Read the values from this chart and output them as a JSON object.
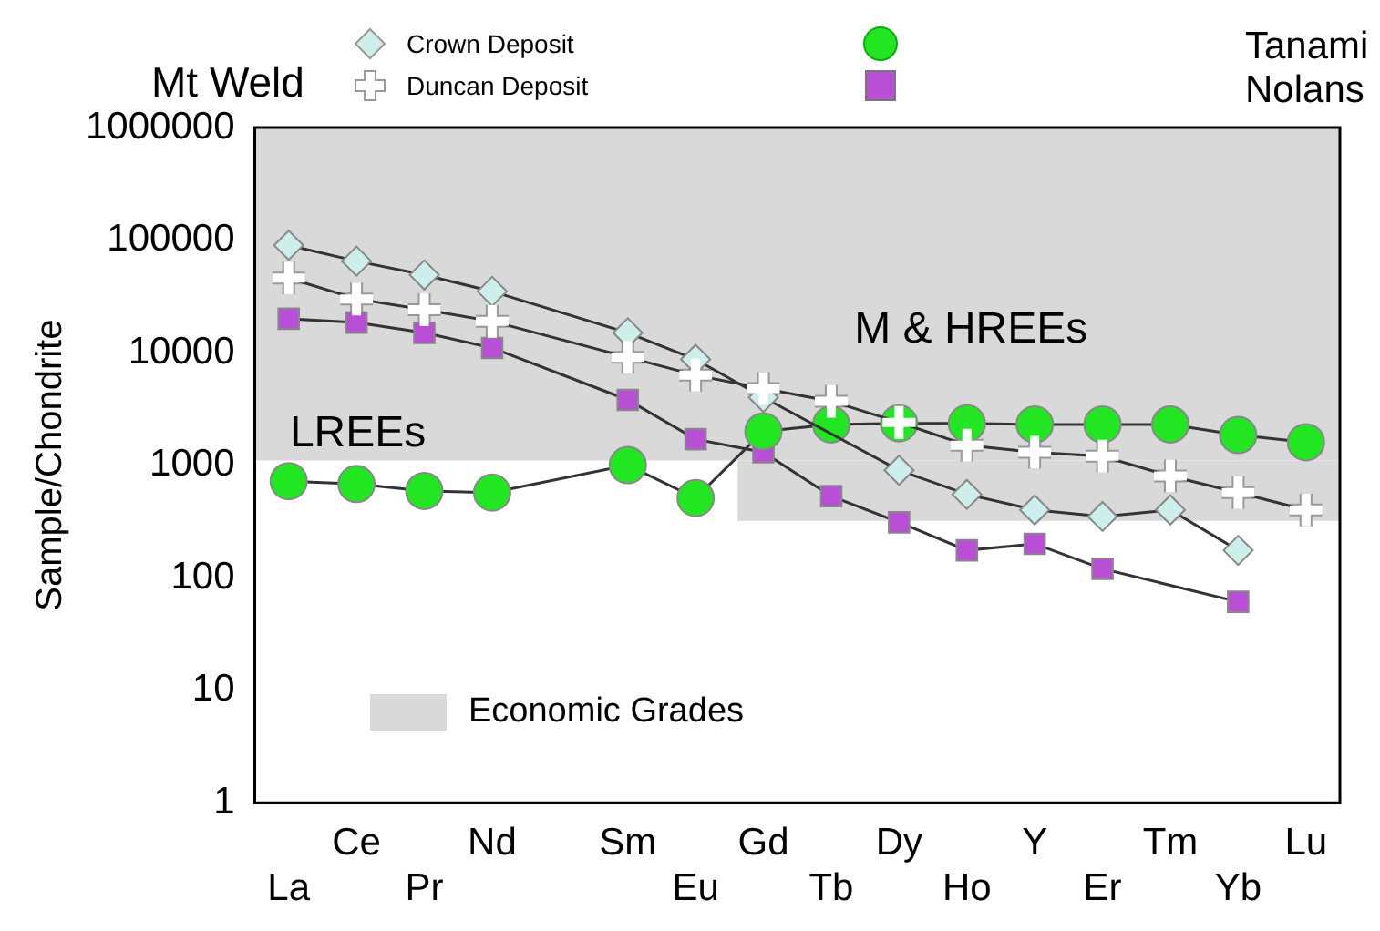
{
  "chart_data": {
    "type": "line",
    "ylabel": "Sample/Chondrite",
    "categories": [
      "La",
      "Ce",
      "Pr",
      "Nd",
      null,
      "Sm",
      "Eu",
      "Gd",
      "Tb",
      "Dy",
      "Ho",
      "Y",
      "Er",
      "Tm",
      "Yb",
      "Lu"
    ],
    "series": [
      {
        "name": "Crown Deposit",
        "color": "#cdeeea",
        "marker": "diamond",
        "values": [
          90000,
          65000,
          49000,
          35000,
          null,
          15000,
          8700,
          4000,
          null,
          900,
          550,
          400,
          350,
          400,
          175,
          null
        ]
      },
      {
        "name": "Duncan Deposit",
        "color": "#ffffff",
        "marker": "cross",
        "values": [
          46000,
          30000,
          24000,
          19000,
          null,
          9100,
          6300,
          4800,
          3700,
          2400,
          1500,
          1300,
          1200,
          800,
          570,
          400
        ]
      },
      {
        "color": "#22e622",
        "marker": "circle",
        "values": [
          720,
          680,
          590,
          570,
          null,
          1000,
          510,
          2000,
          2300,
          2350,
          2350,
          2300,
          2300,
          2300,
          1850,
          1600
        ]
      },
      {
        "color": "#b84fd6",
        "marker": "square",
        "values": [
          20000,
          18500,
          15000,
          11000,
          null,
          3800,
          1700,
          1300,
          530,
          310,
          175,
          200,
          120,
          null,
          61,
          null
        ]
      }
    ],
    "log": true,
    "ylim": [
      1,
      1000000
    ],
    "yticks": [
      1,
      10,
      100,
      1000,
      10000,
      100000,
      1000000
    ],
    "grid": false,
    "legend": "top",
    "bands": [
      {
        "axis": "y",
        "from": 1100,
        "to": 1000000,
        "label": "Economic Grades",
        "color": "#d9d9d9"
      },
      {
        "axis": "y",
        "from": 320,
        "to": 1100,
        "color": "#d9d9d9"
      }
    ],
    "annotations": [
      "Mt Weld",
      "Tanami",
      "Nolans",
      "LREEs",
      "M & HREEs"
    ]
  }
}
